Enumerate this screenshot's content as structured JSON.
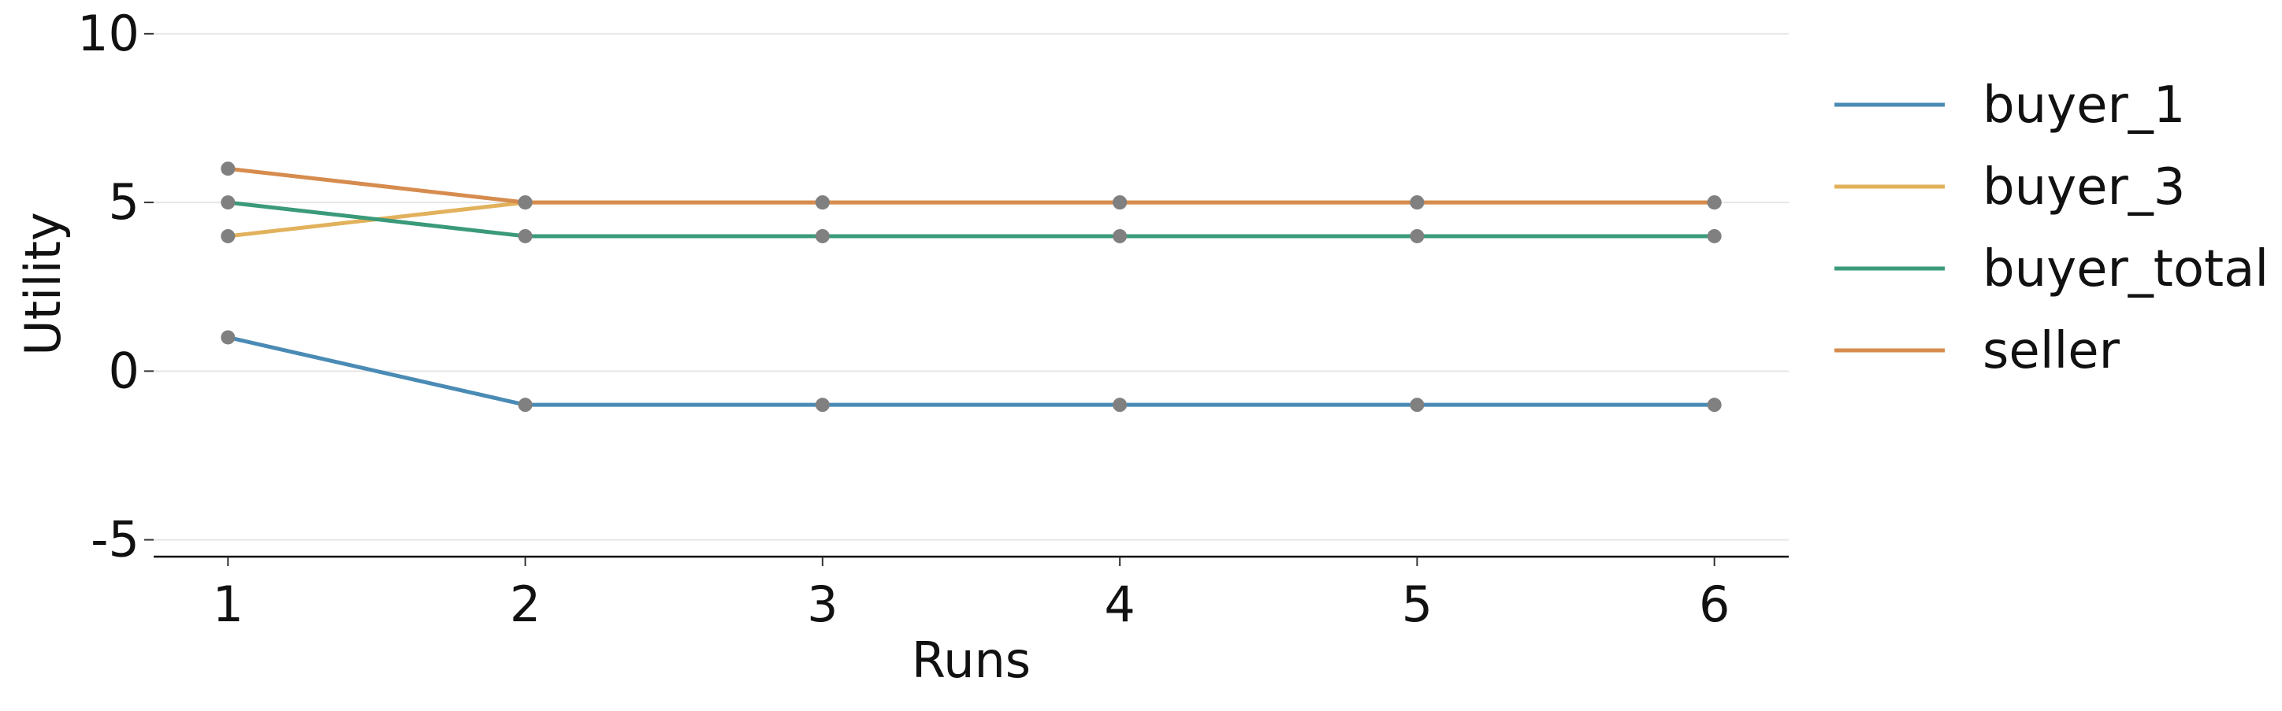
{
  "chart_data": {
    "type": "line",
    "xlabel": "Runs",
    "ylabel": "Utility",
    "x": [
      1,
      2,
      3,
      4,
      5,
      6
    ],
    "xticks": [
      "1",
      "2",
      "3",
      "4",
      "5",
      "6"
    ],
    "yticks": [
      -5,
      0,
      5,
      10
    ],
    "ytick_labels": [
      "-5",
      "0",
      "5",
      "10"
    ],
    "xlim": [
      0.75,
      6.25
    ],
    "ylim": [
      -5.5,
      10.3
    ],
    "grid": "horizontal",
    "legend_position": "right",
    "marker_color": "#808080",
    "series": [
      {
        "name": "buyer_1",
        "color": "#4a8bb5",
        "values": [
          1,
          -1,
          -1,
          -1,
          -1,
          -1
        ]
      },
      {
        "name": "buyer_3",
        "color": "#e2b15c",
        "values": [
          4,
          5,
          5,
          5,
          5,
          5
        ]
      },
      {
        "name": "buyer_total",
        "color": "#3a9a7a",
        "values": [
          5,
          4,
          4,
          4,
          4,
          4
        ]
      },
      {
        "name": "seller",
        "color": "#d68c4e",
        "values": [
          6,
          5,
          5,
          5,
          5,
          5
        ]
      }
    ]
  }
}
